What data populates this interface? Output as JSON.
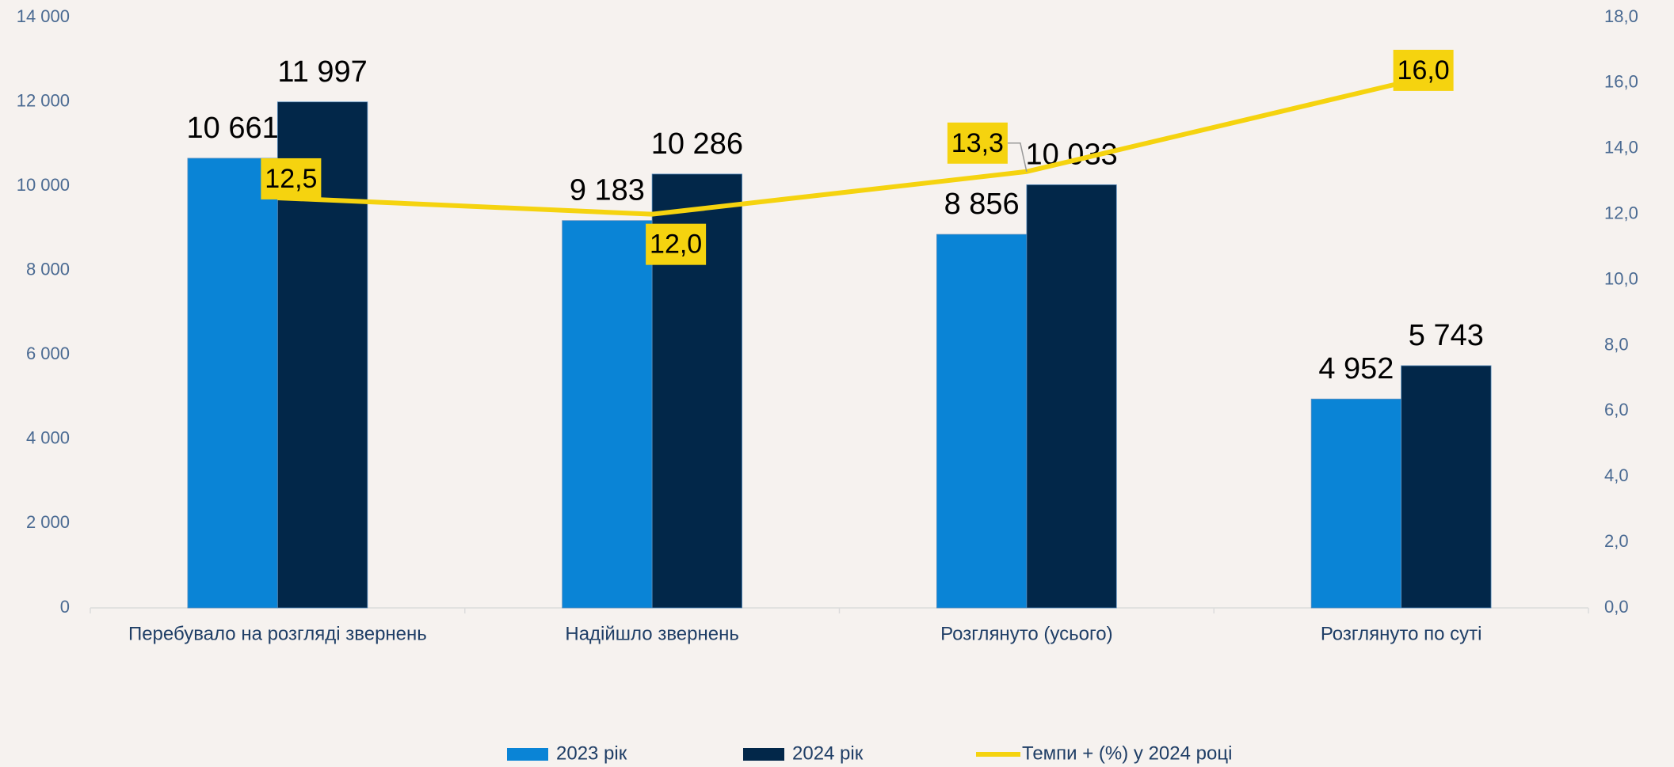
{
  "chart_data": {
    "type": "bar",
    "categories": [
      "Перебувало на розгляді звернень",
      "Надійшло звернень",
      "Розглянуто (усього)",
      "Розглянуто по суті"
    ],
    "series": [
      {
        "name": "2023 рік",
        "color": "#0a84d6",
        "values": [
          10661,
          9183,
          8856,
          4952
        ],
        "value_labels": [
          "10 661",
          "9 183",
          "8 856",
          "4 952"
        ]
      },
      {
        "name": "2024 рік",
        "color": "#022749",
        "values": [
          11997,
          10286,
          10033,
          5743
        ],
        "value_labels": [
          "11 997",
          "10 286",
          "10 033",
          "5 743"
        ]
      },
      {
        "name": "Темпи +  (%) у 2024 році",
        "type": "line",
        "axis": "y2",
        "color": "#f5d30f",
        "values": [
          12.5,
          12.0,
          13.3,
          16.0
        ],
        "value_labels": [
          "12,5",
          "12,0",
          "13,3",
          "16,0"
        ]
      }
    ],
    "ylim": [
      0,
      14000
    ],
    "yticks": [
      0,
      {
        "value": 2000,
        "label": "2 000"
      },
      {
        "value": 4000,
        "label": "4 000"
      },
      {
        "value": 6000,
        "label": "6 000"
      },
      {
        "value": 8000,
        "label": "8 000"
      },
      {
        "value": 10000,
        "label": "10 000"
      },
      {
        "value": 12000,
        "label": "12 000"
      },
      {
        "value": 14000,
        "label": "14 000"
      }
    ],
    "y2lim": [
      0,
      18
    ],
    "y2ticks": [
      {
        "value": 0,
        "label": "0,0"
      },
      {
        "value": 2,
        "label": "2,0"
      },
      {
        "value": 4,
        "label": "4,0"
      },
      {
        "value": 6,
        "label": "6,0"
      },
      {
        "value": 8,
        "label": "8,0"
      },
      {
        "value": 10,
        "label": "10,0"
      },
      {
        "value": 12,
        "label": "12,0"
      },
      {
        "value": 14,
        "label": "14,0"
      },
      {
        "value": 16,
        "label": "16,0"
      },
      {
        "value": 18,
        "label": "18,0"
      }
    ],
    "legend": "bottom"
  }
}
